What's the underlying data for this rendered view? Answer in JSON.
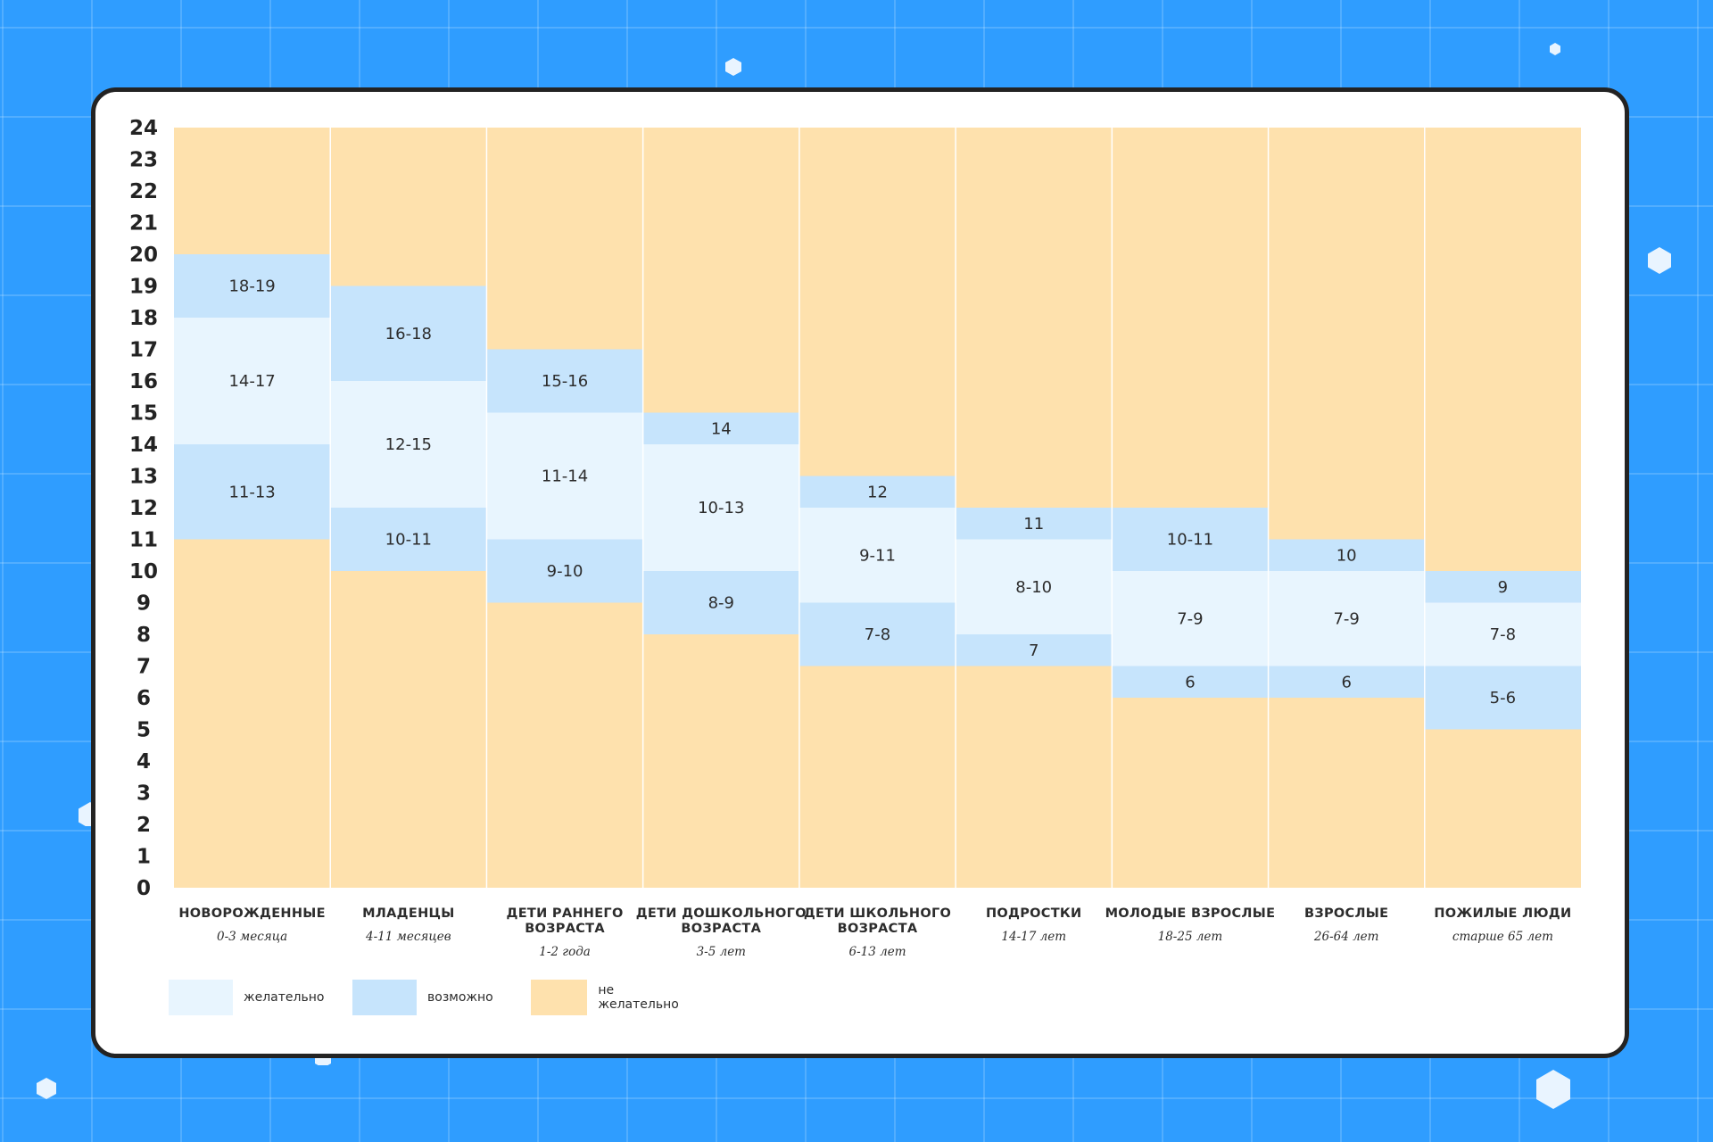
{
  "chart_data": {
    "type": "bar",
    "yticks": [
      0,
      1,
      2,
      3,
      4,
      5,
      6,
      7,
      8,
      9,
      10,
      11,
      12,
      13,
      14,
      15,
      16,
      17,
      18,
      19,
      20,
      21,
      22,
      23,
      24
    ],
    "ylim": [
      0,
      24
    ],
    "categories": [
      {
        "name": [
          "НОВОРОЖДЕННЫЕ"
        ],
        "age": "0-3 месяца",
        "icon": "newborn-icon",
        "segments": [
          {
            "from": 11,
            "to": 14,
            "label": "11-13",
            "level": "possible"
          },
          {
            "from": 14,
            "to": 18,
            "label": "14-17",
            "level": "recommended"
          },
          {
            "from": 18,
            "to": 20,
            "label": "18-19",
            "level": "possible"
          }
        ]
      },
      {
        "name": [
          "МЛАДЕНЦЫ"
        ],
        "age": "4-11 месяцев",
        "icon": "infant-icon",
        "segments": [
          {
            "from": 10,
            "to": 12,
            "label": "10-11",
            "level": "possible"
          },
          {
            "from": 12,
            "to": 16,
            "label": "12-15",
            "level": "recommended"
          },
          {
            "from": 16,
            "to": 19,
            "label": "16-18",
            "level": "possible"
          }
        ]
      },
      {
        "name": [
          "ДЕТИ РАННЕГО",
          "ВОЗРАСТА"
        ],
        "age": "1-2 года",
        "icon": "toddler-icon",
        "segments": [
          {
            "from": 9,
            "to": 11,
            "label": "9-10",
            "level": "possible"
          },
          {
            "from": 11,
            "to": 15,
            "label": "11-14",
            "level": "recommended"
          },
          {
            "from": 15,
            "to": 17,
            "label": "15-16",
            "level": "possible"
          }
        ]
      },
      {
        "name": [
          "ДЕТИ ДОШКОЛЬНОГО",
          "ВОЗРАСТА"
        ],
        "age": "3-5 лет",
        "icon": "preschooler-icon",
        "segments": [
          {
            "from": 8,
            "to": 10,
            "label": "8-9",
            "level": "possible"
          },
          {
            "from": 10,
            "to": 14,
            "label": "10-13",
            "level": "recommended"
          },
          {
            "from": 14,
            "to": 15,
            "label": "14",
            "level": "possible"
          }
        ]
      },
      {
        "name": [
          "ДЕТИ ШКОЛЬНОГО",
          "ВОЗРАСТА"
        ],
        "age": "6-13 лет",
        "icon": "schoolchild-icon",
        "segments": [
          {
            "from": 7,
            "to": 9,
            "label": "7-8",
            "level": "possible"
          },
          {
            "from": 9,
            "to": 12,
            "label": "9-11",
            "level": "recommended"
          },
          {
            "from": 12,
            "to": 13,
            "label": "12",
            "level": "possible"
          }
        ]
      },
      {
        "name": [
          "ПОДРОСТКИ"
        ],
        "age": "14-17 лет",
        "icon": "teenagers-icon",
        "segments": [
          {
            "from": 7,
            "to": 8,
            "label": "7",
            "level": "possible"
          },
          {
            "from": 8,
            "to": 11,
            "label": "8-10",
            "level": "recommended"
          },
          {
            "from": 11,
            "to": 12,
            "label": "11",
            "level": "possible"
          }
        ]
      },
      {
        "name": [
          "МОЛОДЫЕ ВЗРОСЛЫЕ"
        ],
        "age": "18-25 лет",
        "icon": "graduate-icon",
        "segments": [
          {
            "from": 6,
            "to": 7,
            "label": "6",
            "level": "possible"
          },
          {
            "from": 7,
            "to": 10,
            "label": "7-9",
            "level": "recommended"
          },
          {
            "from": 10,
            "to": 12,
            "label": "10-11",
            "level": "possible"
          }
        ]
      },
      {
        "name": [
          "ВЗРОСЛЫЕ"
        ],
        "age": "26-64 лет",
        "icon": "adult-icon",
        "segments": [
          {
            "from": 6,
            "to": 7,
            "label": "6",
            "level": "possible"
          },
          {
            "from": 7,
            "to": 10,
            "label": "7-9",
            "level": "recommended"
          },
          {
            "from": 10,
            "to": 11,
            "label": "10",
            "level": "possible"
          }
        ]
      },
      {
        "name": [
          "ПОЖИЛЫЕ ЛЮДИ"
        ],
        "age": "старше 65 лет",
        "icon": "elderly-icon",
        "segments": [
          {
            "from": 5,
            "to": 7,
            "label": "5-6",
            "level": "possible"
          },
          {
            "from": 7,
            "to": 9,
            "label": "7-8",
            "level": "recommended"
          },
          {
            "from": 9,
            "to": 10,
            "label": "9",
            "level": "possible"
          }
        ]
      }
    ],
    "legend": [
      {
        "key": "recommended",
        "label": "желательно",
        "color": "#e8f5fe"
      },
      {
        "key": "possible",
        "label": "возможно",
        "color": "#c6e4fc"
      },
      {
        "key": "not_recommended",
        "label": "не желательно",
        "color": "#fee1ad"
      }
    ],
    "colors": {
      "recommended": "#e8f5fe",
      "possible": "#c6e4fc",
      "not_recommended": "#fee1ad",
      "background": "#2f9dff",
      "frame": "#232323"
    }
  }
}
